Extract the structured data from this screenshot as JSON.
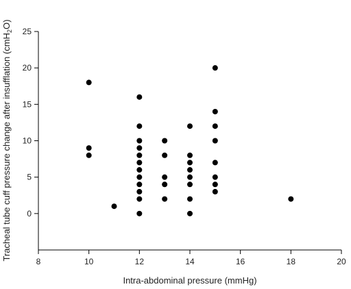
{
  "chart_data": {
    "type": "scatter",
    "xlabel": "Intra-abdominal pressure (mmHg)",
    "ylabel": "Tracheal tube cuff pressure change after insufflation (cmH2O)",
    "ylabel_parts": {
      "before": "Tracheal tube cuff pressure change after insufflation (cmH",
      "subscript": "2",
      "after": "O)"
    },
    "xlim": [
      8,
      20
    ],
    "ylim": [
      -5,
      25
    ],
    "x_ticks": [
      8,
      10,
      12,
      14,
      16,
      18,
      20
    ],
    "y_ticks": [
      0,
      5,
      10,
      15,
      20,
      25
    ],
    "grid": false,
    "marker_color": "#000000",
    "points": [
      {
        "x": 10,
        "y": 18
      },
      {
        "x": 10,
        "y": 9
      },
      {
        "x": 10,
        "y": 8
      },
      {
        "x": 11,
        "y": 1
      },
      {
        "x": 12,
        "y": 16
      },
      {
        "x": 12,
        "y": 12
      },
      {
        "x": 12,
        "y": 10
      },
      {
        "x": 12,
        "y": 9
      },
      {
        "x": 12,
        "y": 8
      },
      {
        "x": 12,
        "y": 7
      },
      {
        "x": 12,
        "y": 6
      },
      {
        "x": 12,
        "y": 5
      },
      {
        "x": 12,
        "y": 4
      },
      {
        "x": 12,
        "y": 3
      },
      {
        "x": 12,
        "y": 2
      },
      {
        "x": 12,
        "y": 0
      },
      {
        "x": 13,
        "y": 10
      },
      {
        "x": 13,
        "y": 8
      },
      {
        "x": 13,
        "y": 5
      },
      {
        "x": 13,
        "y": 4
      },
      {
        "x": 13,
        "y": 2
      },
      {
        "x": 14,
        "y": 12
      },
      {
        "x": 14,
        "y": 8
      },
      {
        "x": 14,
        "y": 7
      },
      {
        "x": 14,
        "y": 6
      },
      {
        "x": 14,
        "y": 5
      },
      {
        "x": 14,
        "y": 4
      },
      {
        "x": 14,
        "y": 2
      },
      {
        "x": 14,
        "y": 0
      },
      {
        "x": 15,
        "y": 20
      },
      {
        "x": 15,
        "y": 14
      },
      {
        "x": 15,
        "y": 12
      },
      {
        "x": 15,
        "y": 10
      },
      {
        "x": 15,
        "y": 7
      },
      {
        "x": 15,
        "y": 5
      },
      {
        "x": 15,
        "y": 4
      },
      {
        "x": 15,
        "y": 3
      },
      {
        "x": 18,
        "y": 2
      }
    ]
  }
}
